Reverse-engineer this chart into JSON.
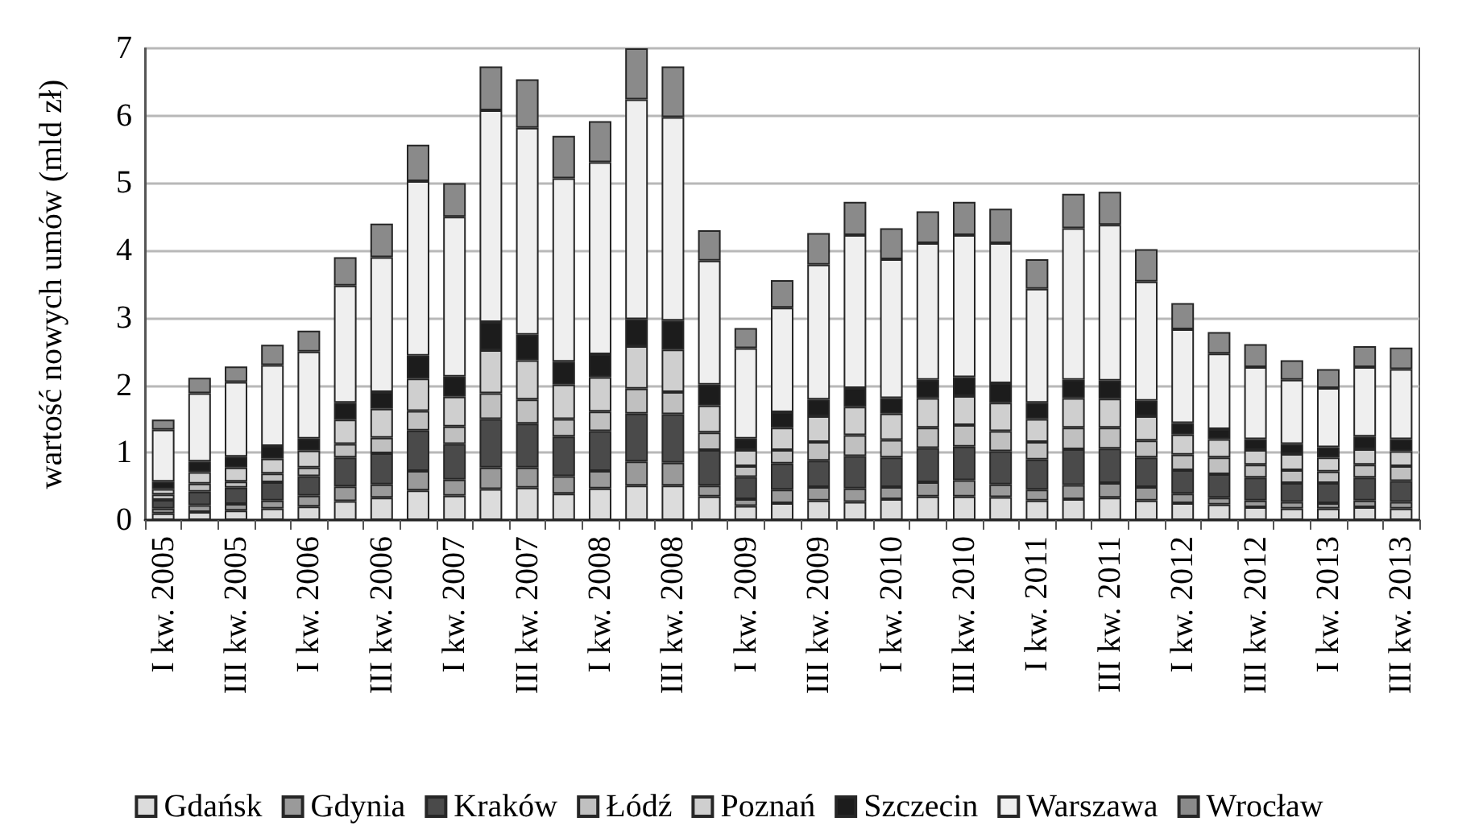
{
  "chart_data": {
    "type": "bar",
    "stacked": true,
    "ylabel": "wartość nowych umów (mld zł)",
    "categories": [
      "I kw. 2005",
      null,
      "III kw. 2005",
      null,
      "I kw. 2006",
      null,
      "III kw. 2006",
      null,
      "I kw. 2007",
      null,
      "III kw. 2007",
      null,
      "I kw. 2008",
      null,
      "III kw. 2008",
      null,
      "I kw. 2009",
      null,
      "III kw. 2009",
      null,
      "I kw. 2010",
      null,
      "III kw. 2010",
      null,
      "I kw. 2011",
      null,
      "III kw. 2011",
      null,
      "I kw. 2012",
      null,
      "III kw. 2012",
      null,
      "I kw. 2013",
      null,
      "III kw. 2013"
    ],
    "ylim": [
      0,
      7
    ],
    "yticks": [
      0,
      1,
      2,
      3,
      4,
      5,
      6,
      7
    ],
    "grid": "y",
    "legend": "bottom",
    "series": [
      {
        "name": "Gdańsk",
        "color": "#dcdcdc",
        "values": [
          0.1,
          0.12,
          0.14,
          0.17,
          0.2,
          0.28,
          0.33,
          0.44,
          0.36,
          0.46,
          0.48,
          0.39,
          0.47,
          0.51,
          0.51,
          0.35,
          0.21,
          0.25,
          0.29,
          0.27,
          0.31,
          0.35,
          0.35,
          0.34,
          0.29,
          0.31,
          0.33,
          0.29,
          0.25,
          0.23,
          0.19,
          0.17,
          0.17,
          0.19,
          0.17
        ]
      },
      {
        "name": "Gdynia",
        "color": "#9a9a9a",
        "values": [
          0.07,
          0.1,
          0.1,
          0.12,
          0.16,
          0.22,
          0.2,
          0.29,
          0.24,
          0.32,
          0.3,
          0.26,
          0.26,
          0.36,
          0.34,
          0.16,
          0.1,
          0.2,
          0.2,
          0.2,
          0.18,
          0.21,
          0.24,
          0.19,
          0.16,
          0.21,
          0.22,
          0.2,
          0.14,
          0.1,
          0.1,
          0.1,
          0.08,
          0.1,
          0.1
        ]
      },
      {
        "name": "Kraków",
        "color": "#4a4a4a",
        "values": [
          0.13,
          0.2,
          0.24,
          0.27,
          0.29,
          0.43,
          0.46,
          0.6,
          0.53,
          0.72,
          0.65,
          0.59,
          0.59,
          0.71,
          0.72,
          0.53,
          0.33,
          0.39,
          0.39,
          0.48,
          0.44,
          0.51,
          0.5,
          0.49,
          0.45,
          0.53,
          0.51,
          0.44,
          0.35,
          0.35,
          0.34,
          0.28,
          0.3,
          0.34,
          0.31
        ]
      },
      {
        "name": "Łódź",
        "color": "#c0c0c0",
        "values": [
          0.08,
          0.12,
          0.09,
          0.13,
          0.13,
          0.2,
          0.23,
          0.29,
          0.26,
          0.38,
          0.36,
          0.26,
          0.29,
          0.37,
          0.33,
          0.26,
          0.16,
          0.2,
          0.28,
          0.31,
          0.26,
          0.3,
          0.32,
          0.3,
          0.26,
          0.32,
          0.31,
          0.25,
          0.23,
          0.25,
          0.19,
          0.19,
          0.17,
          0.19,
          0.22
        ]
      },
      {
        "name": "Poznań",
        "color": "#cfcfcf",
        "values": [
          0.08,
          0.17,
          0.21,
          0.22,
          0.25,
          0.36,
          0.43,
          0.48,
          0.44,
          0.64,
          0.58,
          0.51,
          0.51,
          0.63,
          0.63,
          0.4,
          0.24,
          0.33,
          0.38,
          0.42,
          0.39,
          0.44,
          0.43,
          0.42,
          0.34,
          0.44,
          0.43,
          0.36,
          0.3,
          0.27,
          0.22,
          0.24,
          0.21,
          0.23,
          0.22
        ]
      },
      {
        "name": "Szczecin",
        "color": "#1c1c1c",
        "values": [
          0.11,
          0.16,
          0.16,
          0.19,
          0.18,
          0.25,
          0.25,
          0.34,
          0.3,
          0.42,
          0.38,
          0.34,
          0.34,
          0.4,
          0.43,
          0.31,
          0.17,
          0.23,
          0.25,
          0.28,
          0.23,
          0.27,
          0.28,
          0.29,
          0.24,
          0.27,
          0.27,
          0.23,
          0.17,
          0.15,
          0.16,
          0.15,
          0.15,
          0.19,
          0.18
        ]
      },
      {
        "name": "Warszawa",
        "color": "#efefef",
        "values": [
          0.77,
          1.01,
          1.11,
          1.2,
          1.29,
          1.74,
          2.0,
          2.59,
          2.37,
          3.14,
          3.07,
          2.72,
          2.85,
          3.26,
          3.02,
          1.84,
          1.34,
          1.55,
          2.0,
          2.27,
          2.06,
          2.03,
          2.11,
          2.08,
          1.69,
          2.25,
          2.31,
          1.77,
          1.39,
          1.12,
          1.07,
          0.95,
          0.88,
          1.03,
          1.04
        ]
      },
      {
        "name": "Wrocław",
        "color": "#8a8a8a",
        "values": [
          0.15,
          0.23,
          0.23,
          0.3,
          0.31,
          0.42,
          0.5,
          0.54,
          0.5,
          0.65,
          0.72,
          0.63,
          0.61,
          0.76,
          0.75,
          0.45,
          0.3,
          0.41,
          0.47,
          0.49,
          0.46,
          0.47,
          0.49,
          0.51,
          0.44,
          0.51,
          0.49,
          0.48,
          0.39,
          0.32,
          0.34,
          0.29,
          0.28,
          0.31,
          0.32
        ]
      }
    ]
  }
}
